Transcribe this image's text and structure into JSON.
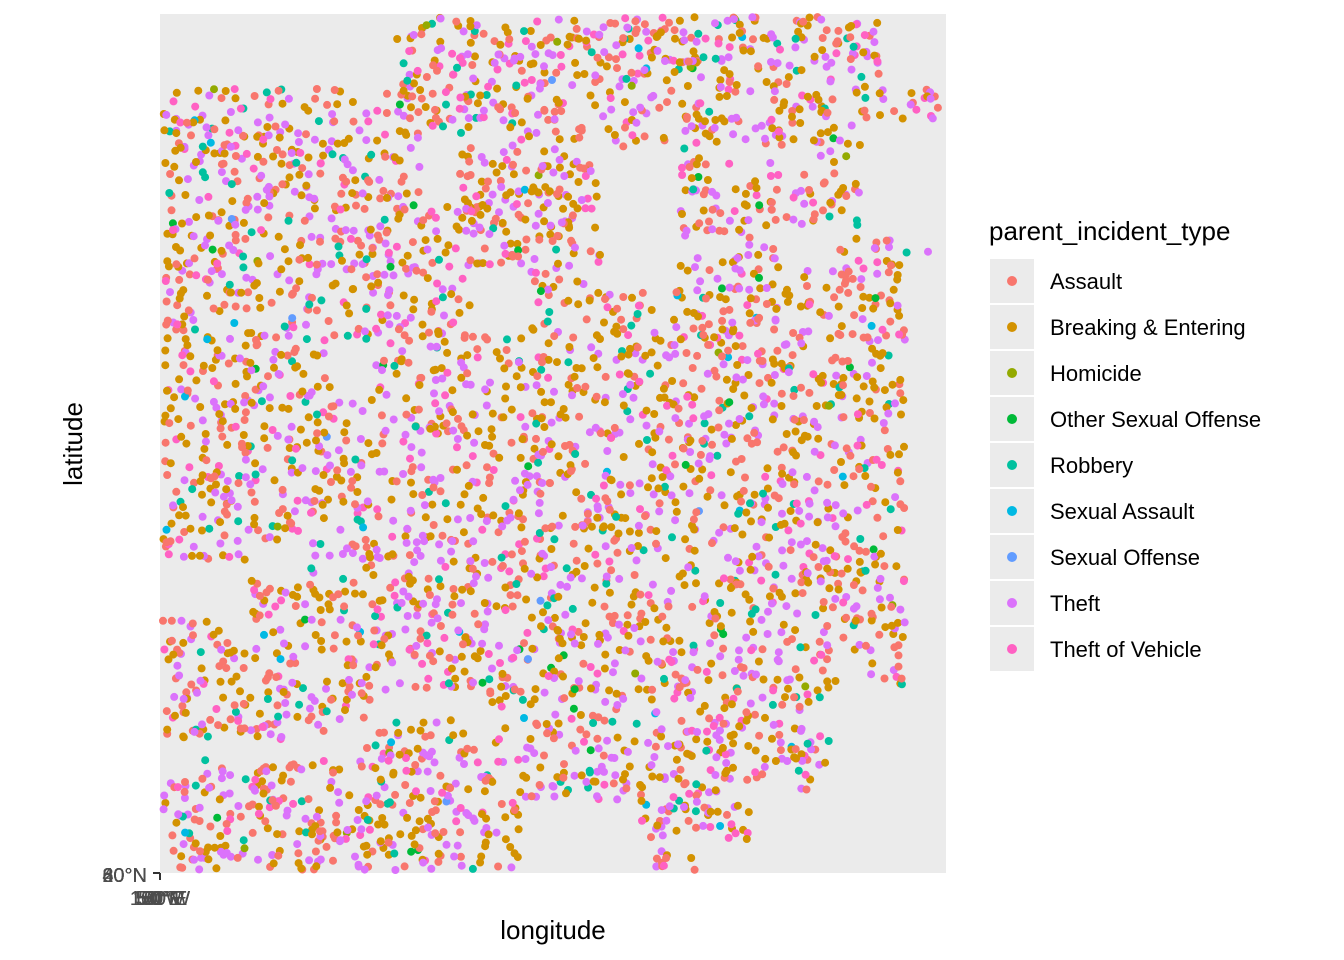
{
  "chart_data": {
    "type": "scatter",
    "title": "",
    "xlabel": "longitude",
    "ylabel": "latitude",
    "x_tick_labels": [
      "150°W",
      "100°W",
      "50°W",
      "0°",
      "50°E",
      "100°E",
      "150°E"
    ],
    "y_tick_labels": [
      "20°N",
      "40°N",
      "60°N",
      "80°N"
    ],
    "panel_background": "#ebebeb",
    "grid": false,
    "legend": {
      "title": "parent_incident_type",
      "position": "right",
      "entries": [
        {
          "label": "Assault",
          "color": "#F8766D"
        },
        {
          "label": "Breaking & Entering",
          "color": "#D39200"
        },
        {
          "label": "Homicide",
          "color": "#93AA00"
        },
        {
          "label": "Other Sexual Offense",
          "color": "#00BA38"
        },
        {
          "label": "Robbery",
          "color": "#00C19F"
        },
        {
          "label": "Sexual Assault",
          "color": "#00B9E3"
        },
        {
          "label": "Sexual Offense",
          "color": "#619CFF"
        },
        {
          "label": "Theft",
          "color": "#DB72FB"
        },
        {
          "label": "Theft of Vehicle",
          "color": "#FF61C3"
        }
      ]
    },
    "series_share": {
      "Assault": 0.26,
      "Breaking & Entering": 0.31,
      "Homicide": 0.004,
      "Other Sexual Offense": 0.01,
      "Robbery": 0.06,
      "Sexual Assault": 0.01,
      "Sexual Offense": 0.003,
      "Theft": 0.25,
      "Theft of Vehicle": 0.09
    }
  }
}
